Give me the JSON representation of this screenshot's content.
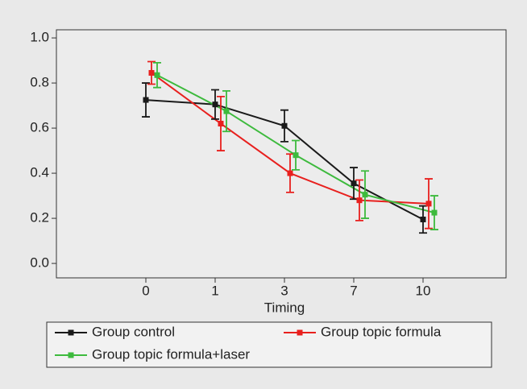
{
  "chart_data": {
    "type": "line",
    "x_label": "Timing",
    "categories": [
      "0",
      "1",
      "3",
      "7",
      "10"
    ],
    "series": [
      {
        "name": "Group control",
        "color": "#1a1a1a",
        "values": [
          0.725,
          0.705,
          0.61,
          0.355,
          0.195
        ],
        "errors": [
          0.075,
          0.065,
          0.07,
          0.07,
          0.06
        ]
      },
      {
        "name": "Group topic formula",
        "color": "#e8201e",
        "values": [
          0.845,
          0.62,
          0.4,
          0.28,
          0.265
        ],
        "errors": [
          0.05,
          0.12,
          0.085,
          0.09,
          0.11
        ]
      },
      {
        "name": "Group topic formula+laser",
        "color": "#3dba3d",
        "values": [
          0.835,
          0.675,
          0.48,
          0.305,
          0.225
        ],
        "errors": [
          0.055,
          0.09,
          0.065,
          0.105,
          0.075
        ]
      }
    ],
    "ylim": [
      -0.064,
      1.036
    ],
    "yticks": [
      {
        "value": 0,
        "label": "0.0"
      },
      0.2,
      0.4,
      0.6,
      0.8,
      {
        "value": 1,
        "label": "1.0"
      }
    ],
    "grid": false,
    "legend": "bottom"
  }
}
